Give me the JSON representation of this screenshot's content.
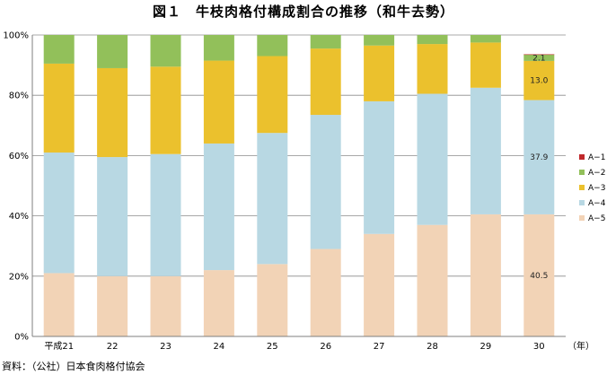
{
  "title": "図１　牛枝肉格付構成割合の推移（和牛去勢）",
  "source": "資料：（公社）日本食肉格付協会",
  "chart_data": {
    "type": "bar",
    "stacked": true,
    "categories": [
      "平成21",
      "22",
      "23",
      "24",
      "25",
      "26",
      "27",
      "28",
      "29",
      "30"
    ],
    "x_unit": "（年）",
    "yticks": [
      "0%",
      "20%",
      "40%",
      "60%",
      "80%",
      "100%"
    ],
    "ylim": [
      0,
      100
    ],
    "grid": true,
    "legend_position": "right",
    "series": [
      {
        "name": "A−5",
        "color": "#f2d3b6",
        "values": [
          21.0,
          20.0,
          20.0,
          22.0,
          24.0,
          29.0,
          34.0,
          37.0,
          40.5,
          40.5
        ]
      },
      {
        "name": "A−4",
        "color": "#b8d8e3",
        "values": [
          40.0,
          39.5,
          40.5,
          42.0,
          43.5,
          44.5,
          44.0,
          43.5,
          42.0,
          37.9
        ]
      },
      {
        "name": "A−3",
        "color": "#ebc12d",
        "values": [
          29.5,
          29.5,
          29.0,
          27.5,
          25.5,
          22.0,
          18.5,
          16.5,
          15.0,
          13.0
        ]
      },
      {
        "name": "A−2",
        "color": "#92c05a",
        "values": [
          9.5,
          11.0,
          10.5,
          8.5,
          7.0,
          4.5,
          3.5,
          3.0,
          2.5,
          2.1
        ]
      },
      {
        "name": "A−1",
        "color": "#c0282b",
        "values": [
          0.0,
          0.0,
          0.0,
          0.0,
          0.0,
          0.0,
          0.0,
          0.0,
          0.0,
          0.1
        ]
      }
    ],
    "data_labels": [
      {
        "series": "A−2",
        "category": "30",
        "text": "2.1"
      },
      {
        "series": "A−3",
        "category": "30",
        "text": "13.0"
      },
      {
        "series": "A−4",
        "category": "30",
        "text": "37.9"
      },
      {
        "series": "A−5",
        "category": "30",
        "text": "40.5"
      }
    ]
  }
}
